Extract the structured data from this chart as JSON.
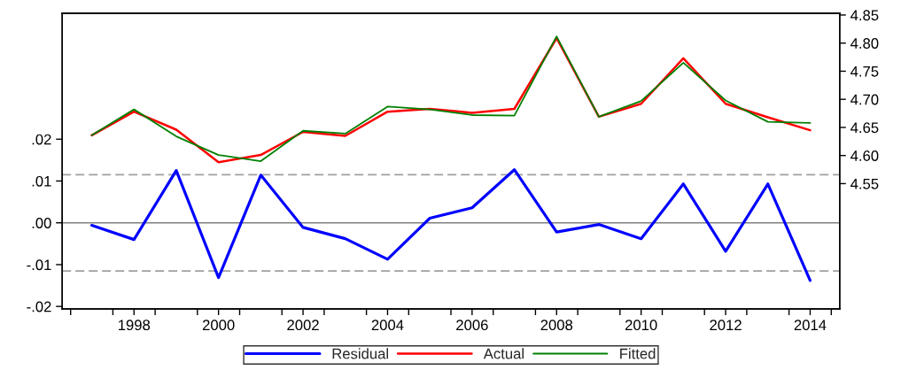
{
  "chart_data": {
    "type": "line",
    "x": [
      1997,
      1998,
      1999,
      2000,
      2001,
      2002,
      2003,
      2004,
      2005,
      2006,
      2007,
      2008,
      2009,
      2010,
      2011,
      2012,
      2013,
      2014
    ],
    "series": [
      {
        "name": "Residual",
        "color": "#0000ff",
        "axis": "y",
        "values": [
          -0.0006,
          -0.004,
          0.0125,
          -0.0131,
          0.0114,
          -0.0011,
          -0.0038,
          -0.0087,
          0.0011,
          0.0036,
          0.0127,
          -0.0022,
          -0.0004,
          -0.0038,
          0.0093,
          -0.0068,
          0.0093,
          -0.0138
        ]
      },
      {
        "name": "Actual",
        "color": "#ff0000",
        "axis": "y2",
        "values": [
          4.636,
          4.678,
          4.646,
          4.588,
          4.601,
          4.642,
          4.635,
          4.678,
          4.683,
          4.676,
          4.683,
          4.809,
          4.669,
          4.692,
          4.773,
          4.692,
          4.668,
          4.645
        ]
      },
      {
        "name": "Fitted",
        "color": "#008000",
        "axis": "y2",
        "values": [
          4.636,
          4.682,
          4.634,
          4.601,
          4.59,
          4.644,
          4.639,
          4.687,
          4.682,
          4.672,
          4.671,
          4.812,
          4.669,
          4.697,
          4.765,
          4.698,
          4.66,
          4.658
        ]
      }
    ],
    "xlim": [
      1996.3,
      2014.7
    ],
    "xticks": [
      {
        "value": 1996.5,
        "label": null
      },
      {
        "value": 1997.5,
        "label": null
      },
      {
        "value": 1998,
        "label": "1998"
      },
      {
        "value": 1998.5,
        "label": null
      },
      {
        "value": 1999.5,
        "label": null
      },
      {
        "value": 2000,
        "label": "2000"
      },
      {
        "value": 2000.5,
        "label": null
      },
      {
        "value": 2001.5,
        "label": null
      },
      {
        "value": 2002,
        "label": "2002"
      },
      {
        "value": 2002.5,
        "label": null
      },
      {
        "value": 2003.5,
        "label": null
      },
      {
        "value": 2004,
        "label": "2004"
      },
      {
        "value": 2004.5,
        "label": null
      },
      {
        "value": 2005.5,
        "label": null
      },
      {
        "value": 2006,
        "label": "2006"
      },
      {
        "value": 2006.5,
        "label": null
      },
      {
        "value": 2007.5,
        "label": null
      },
      {
        "value": 2008,
        "label": "2008"
      },
      {
        "value": 2008.5,
        "label": null
      },
      {
        "value": 2009.5,
        "label": null
      },
      {
        "value": 2010,
        "label": "2010"
      },
      {
        "value": 2010.5,
        "label": null
      },
      {
        "value": 2011.5,
        "label": null
      },
      {
        "value": 2012,
        "label": "2012"
      },
      {
        "value": 2012.5,
        "label": null
      },
      {
        "value": 2013.5,
        "label": null
      },
      {
        "value": 2014,
        "label": "2014"
      },
      {
        "value": 2014.5,
        "label": null
      }
    ],
    "ylim": [
      -0.0206,
      0.0501
    ],
    "yticks": [
      {
        "value": -0.02,
        "label": "-.02"
      },
      {
        "value": -0.01,
        "label": "-.01"
      },
      {
        "value": 0,
        "label": ".00"
      },
      {
        "value": 0.01,
        "label": ".01"
      },
      {
        "value": 0.02,
        "label": ".02"
      }
    ],
    "y2lim": [
      4.327,
      4.853
    ],
    "y2ticks": [
      4.55,
      {
        "value": 4.6,
        "label": "4.60"
      },
      4.65,
      {
        "value": 4.7,
        "label": "4.70"
      },
      4.75,
      {
        "value": 4.8,
        "label": "4.80"
      },
      4.85
    ],
    "ref_lines": [
      {
        "axis": "y",
        "value": 0,
        "color": "#808080",
        "line_style": "solid"
      },
      {
        "axis": "y",
        "value": 0.0115,
        "color": "#a0a0a0",
        "line_style": "dashed"
      },
      {
        "axis": "y",
        "value": -0.0115,
        "color": "#a0a0a0",
        "line_style": "dashed"
      }
    ],
    "grid": false,
    "legend": "bottom",
    "marker": "none",
    "line_style": "solid"
  }
}
